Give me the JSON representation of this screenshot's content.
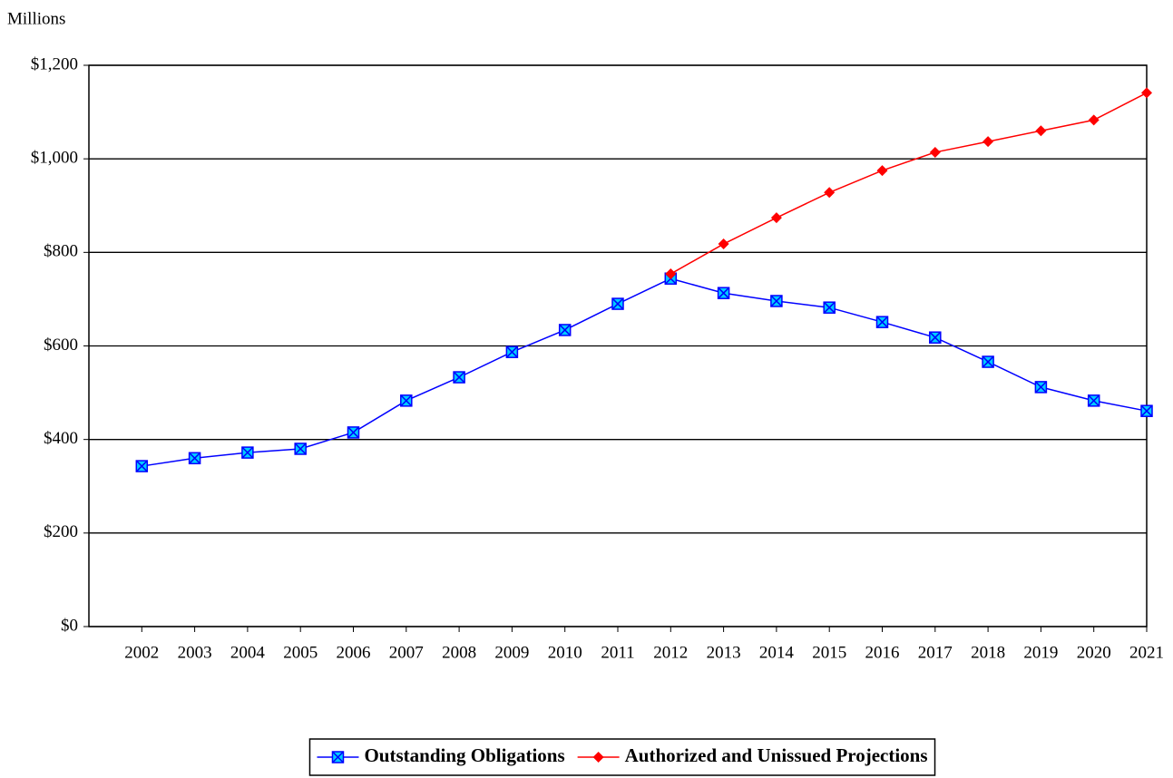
{
  "chart_data": {
    "type": "line",
    "y_label": "Millions",
    "categories": [
      "2002",
      "2003",
      "2004",
      "2005",
      "2006",
      "2007",
      "2008",
      "2009",
      "2010",
      "2011",
      "2012",
      "2013",
      "2014",
      "2015",
      "2016",
      "2017",
      "2018",
      "2019",
      "2020",
      "2021"
    ],
    "series": [
      {
        "name": "Outstanding Obligations",
        "color": "#0000ff",
        "marker": "square-x",
        "values": [
          343,
          360,
          372,
          380,
          415,
          483,
          533,
          587,
          634,
          690,
          744,
          713,
          696,
          682,
          651,
          618,
          566,
          512,
          483,
          461
        ]
      },
      {
        "name": "Authorized and Unissued Projections",
        "color": "#ff0000",
        "marker": "diamond",
        "values": [
          null,
          null,
          null,
          null,
          null,
          null,
          null,
          null,
          null,
          null,
          754,
          818,
          874,
          928,
          975,
          1014,
          1037,
          1060,
          1083,
          1141
        ]
      }
    ],
    "ylim": [
      0,
      1200
    ],
    "yticks": [
      {
        "value": 0,
        "label": "$0"
      },
      {
        "value": 200,
        "label": "$200"
      },
      {
        "value": 400,
        "label": "$400"
      },
      {
        "value": 600,
        "label": "$600"
      },
      {
        "value": 800,
        "label": "$800"
      },
      {
        "value": 1000,
        "label": "$1,000"
      },
      {
        "value": 1200,
        "label": "$1,200"
      }
    ],
    "grid": true,
    "legend": "bottom"
  }
}
